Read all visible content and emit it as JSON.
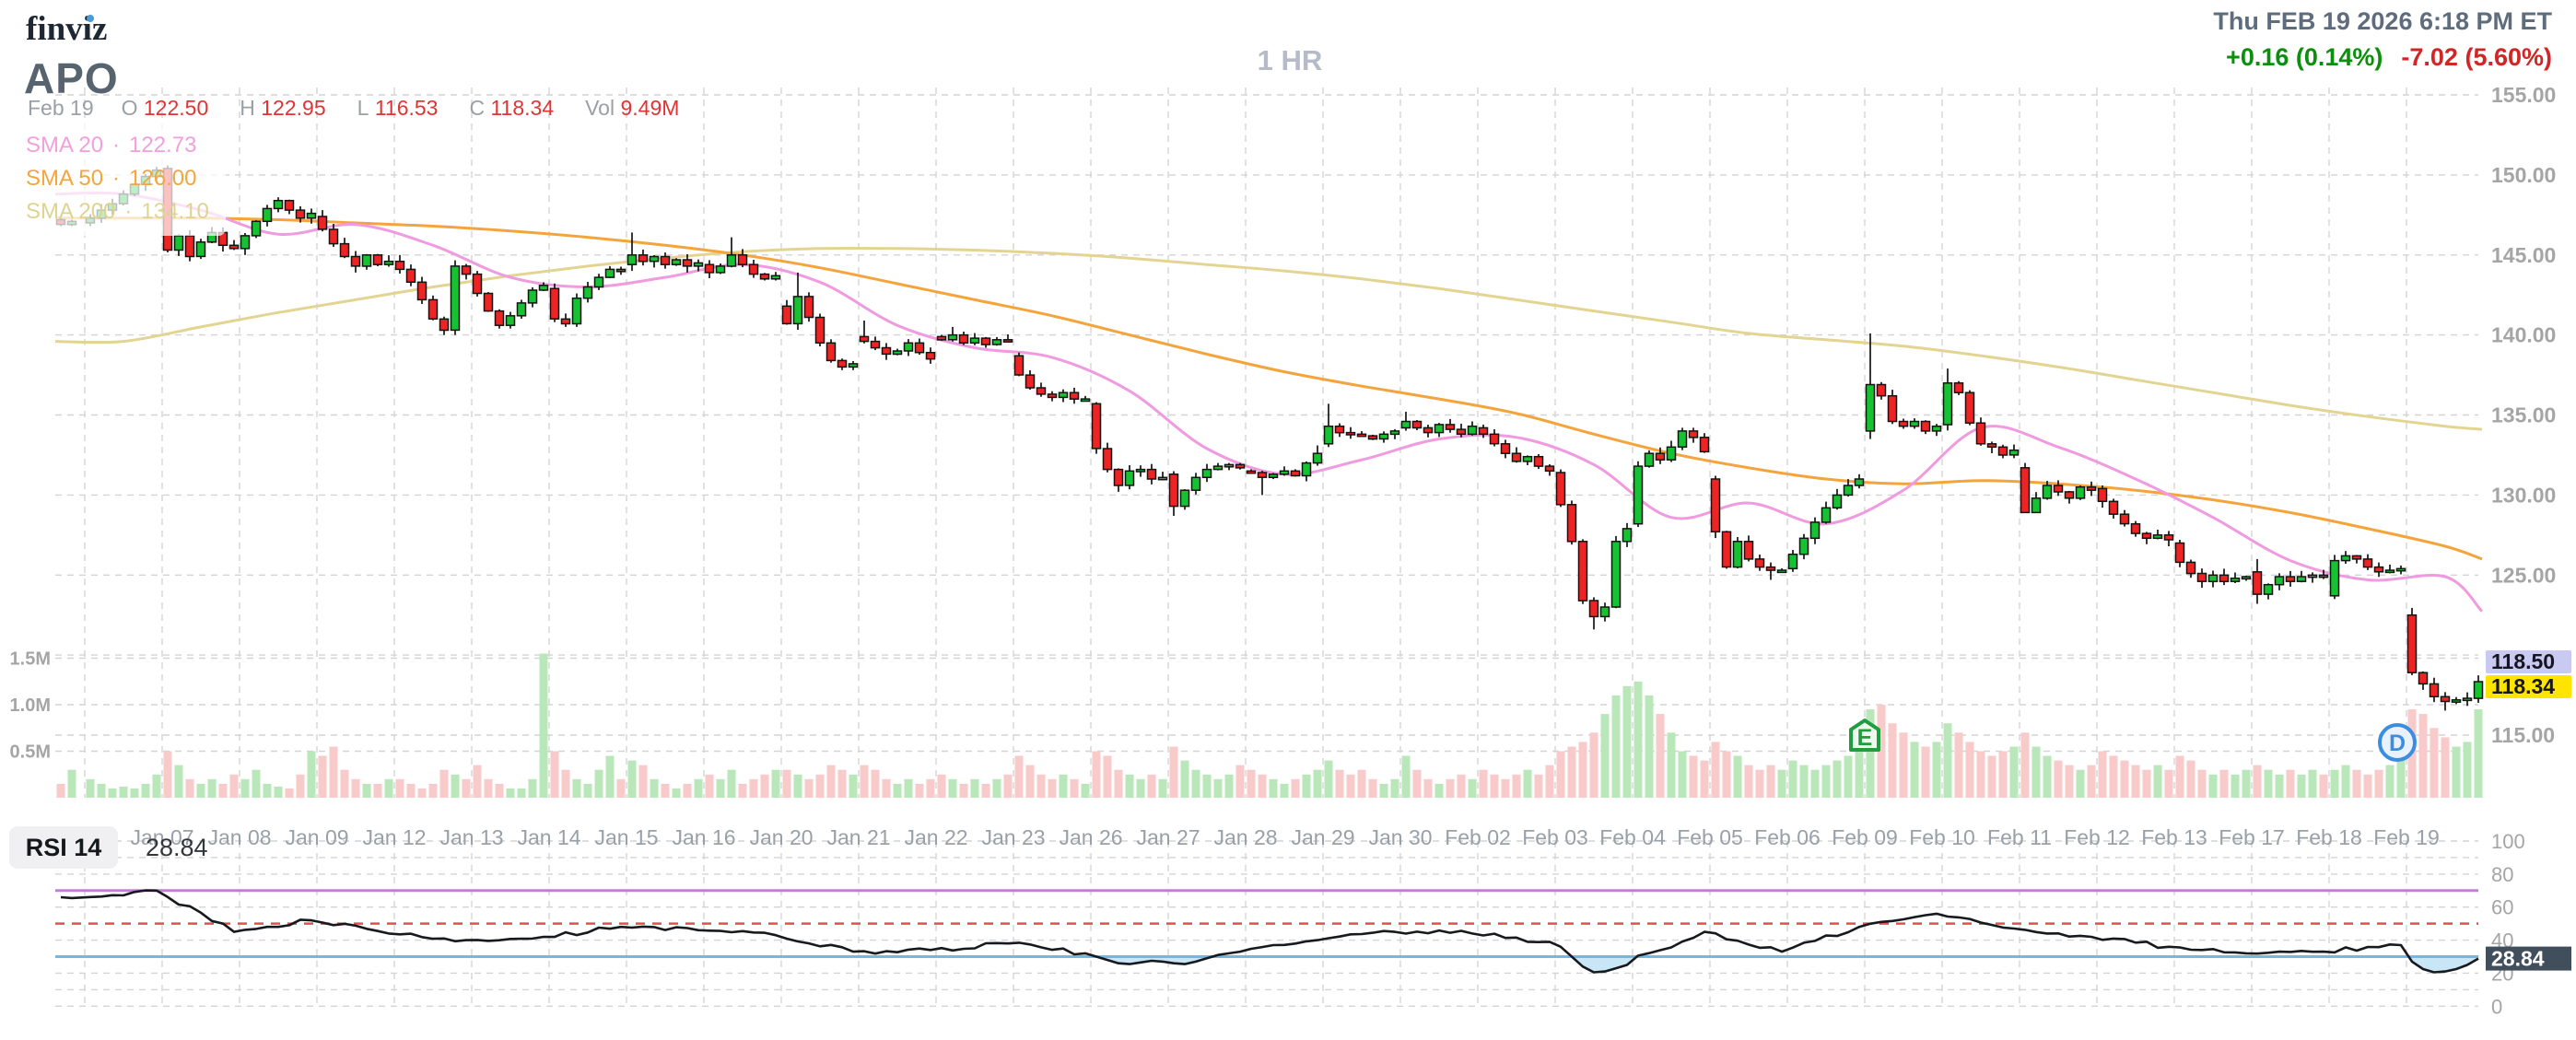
{
  "header": {
    "logo": "finviz",
    "ticker": "APO",
    "clock": "Thu FEB 19 2026 6:18 PM ET",
    "change_afterhours": "+0.16 (0.14%)",
    "change_day": "-7.02 (5.60%)",
    "timeframe": "1 HR"
  },
  "readout": {
    "date": "Feb 19",
    "items": [
      {
        "k": "O",
        "v": "122.50"
      },
      {
        "k": "H",
        "v": "122.95"
      },
      {
        "k": "L",
        "v": "116.53"
      },
      {
        "k": "C",
        "v": "118.34"
      },
      {
        "k": "Vol",
        "v": "9.49M"
      }
    ]
  },
  "legend": {
    "sep": "·",
    "rows": [
      {
        "label": "SMA 20",
        "value": "122.73",
        "color": "#f2a0dc"
      },
      {
        "label": "SMA 50",
        "value": "126.00",
        "color": "#f5a53d"
      },
      {
        "label": "SMA 200",
        "value": "134.10",
        "color": "#ded391"
      }
    ]
  },
  "rsi_panel": {
    "label": "RSI 14",
    "value": "28.84",
    "levels": {
      "overbought": 70,
      "middle": 50,
      "oversold": 30
    },
    "axis_ticks": [
      100,
      80,
      60,
      40,
      20,
      0
    ],
    "badge_bg": "#414e5b"
  },
  "price_badges": [
    {
      "text": "118.50",
      "bg": "#c9c9f2",
      "fg": "#15151f"
    },
    {
      "text": "118.34",
      "bg": "#ffe400",
      "fg": "#15151f"
    }
  ],
  "markers": [
    {
      "type": "earnings",
      "label": "E",
      "day": 23,
      "shape": "pentagon",
      "stroke": "#1e9e3e",
      "fill": "#edf9ed"
    },
    {
      "type": "dividend",
      "label": "D",
      "day": 30,
      "shape": "circle",
      "stroke": "#3b8de0",
      "fill": "#e9f2fc"
    }
  ],
  "colors": {
    "candle_up": "#16c232",
    "candle_down": "#ee2424",
    "candle_border": "#141414",
    "vol_up": "#b9e7b9",
    "vol_down": "#f8caca",
    "grid": "#d4d4d4",
    "axis_text": "#a5a5a5",
    "date_text": "#98a0a8",
    "sma20": "#f09ae0",
    "sma50": "#f5a43c",
    "sma200": "#e3d492",
    "rsi_line": "#16191d",
    "rsi_ob": "#c77be0",
    "rsi_mid": "#e05252",
    "rsi_os": "#6db9e8",
    "rsi_fill": "#c9e6f7"
  },
  "chart_data": {
    "type": "candlestick",
    "interval": "1 HR",
    "title": "APO hourly candlestick chart with volume and RSI(14)",
    "price_axis_ticks": [
      155,
      150,
      145,
      140,
      135,
      130,
      125,
      115
    ],
    "price_range": [
      113,
      156
    ],
    "volume_axis": [
      {
        "label": "1.5M",
        "value": 1.5
      },
      {
        "label": "1.0M",
        "value": 1.0
      },
      {
        "label": "0.5M",
        "value": 0.5
      }
    ],
    "last_close": 118.34,
    "extended_price": 118.5,
    "pre_session": {
      "path": [
        147.2,
        146.9,
        147.1
      ],
      "vols": [
        0.15,
        0.3
      ],
      "rsi_start": 66
    },
    "days": [
      {
        "d": "",
        "p": [
          147.0,
          147.3,
          147.8,
          148.2,
          148.8,
          149.4,
          149.9,
          150.3
        ],
        "h": 150.5,
        "l": 146.8,
        "v": [
          0.2,
          0.15,
          0.1,
          0.12,
          0.1,
          0.15,
          0.25
        ],
        "rsi": 70
      },
      {
        "d": "Jan 07",
        "p": [
          150.4,
          145.3,
          146.2,
          144.9,
          145.8,
          146.4,
          145.6,
          145.4
        ],
        "h": 150.6,
        "l": 144.6,
        "v": [
          0.5,
          0.35,
          0.2,
          0.15,
          0.2,
          0.15,
          0.25
        ],
        "rsi": 45
      },
      {
        "d": "Jan 08",
        "p": [
          145.4,
          146.2,
          147.1,
          147.9,
          148.4,
          147.8,
          147.3,
          147.6
        ],
        "h": 148.6,
        "l": 145.0,
        "v": [
          0.2,
          0.3,
          0.15,
          0.12,
          0.1,
          0.25,
          0.5
        ],
        "rsi": 52
      },
      {
        "d": "Jan 09",
        "p": [
          147.4,
          146.6,
          145.7,
          144.9,
          144.3,
          145.0,
          144.4,
          144.6
        ],
        "h": 147.8,
        "l": 143.9,
        "v": [
          0.45,
          0.55,
          0.3,
          0.2,
          0.15,
          0.15,
          0.2
        ],
        "rsi": 44
      },
      {
        "d": "Jan 12",
        "p": [
          144.6,
          144.1,
          143.3,
          142.2,
          141.0,
          140.3,
          144.3,
          143.8
        ],
        "h": 145.0,
        "l": 140.0,
        "v": [
          0.2,
          0.15,
          0.1,
          0.15,
          0.3,
          0.25,
          0.2
        ],
        "rsi": 40
      },
      {
        "d": "Jan 13",
        "p": [
          143.8,
          142.6,
          141.5,
          140.6,
          141.2,
          142.0,
          142.8,
          143.1
        ],
        "h": 144.0,
        "l": 140.4,
        "v": [
          0.35,
          0.2,
          0.15,
          0.1,
          0.1,
          0.2,
          1.55
        ],
        "rsi": 42
      },
      {
        "d": "Jan 14",
        "p": [
          142.9,
          141.0,
          140.7,
          142.3,
          143.0,
          143.6,
          144.1,
          144.0
        ],
        "h": 144.3,
        "l": 140.5,
        "v": [
          0.5,
          0.3,
          0.2,
          0.15,
          0.3,
          0.45,
          0.2
        ],
        "rsi": 48
      },
      {
        "d": "Jan 15",
        "p": [
          144.4,
          145.0,
          144.6,
          144.9,
          144.4,
          144.7,
          144.3,
          144.5
        ],
        "h": 146.4,
        "l": 143.9,
        "v": [
          0.4,
          0.35,
          0.2,
          0.15,
          0.1,
          0.15,
          0.2
        ],
        "rsi": 46
      },
      {
        "d": "Jan 16",
        "p": [
          144.4,
          143.9,
          144.3,
          145.0,
          144.4,
          143.8,
          143.5,
          143.7
        ],
        "h": 146.1,
        "l": 143.4,
        "v": [
          0.25,
          0.2,
          0.3,
          0.15,
          0.2,
          0.25,
          0.3
        ],
        "rsi": 43
      },
      {
        "d": "Jan 20",
        "p": [
          141.8,
          140.7,
          142.4,
          141.1,
          139.5,
          138.4,
          138.0,
          138.2
        ],
        "h": 143.9,
        "l": 137.8,
        "v": [
          0.3,
          0.25,
          0.2,
          0.25,
          0.35,
          0.3,
          0.25
        ],
        "rsi": 33
      },
      {
        "d": "Jan 21",
        "p": [
          139.9,
          139.6,
          139.2,
          138.8,
          139.0,
          139.5,
          138.9,
          138.5
        ],
        "h": 140.9,
        "l": 138.2,
        "v": [
          0.35,
          0.3,
          0.2,
          0.15,
          0.2,
          0.15,
          0.2
        ],
        "rsi": 34
      },
      {
        "d": "Jan 22",
        "p": [
          139.9,
          139.7,
          140.0,
          139.5,
          139.8,
          139.4,
          139.7,
          139.6
        ],
        "h": 140.5,
        "l": 139.2,
        "v": [
          0.25,
          0.2,
          0.15,
          0.2,
          0.15,
          0.2,
          0.25
        ],
        "rsi": 38
      },
      {
        "d": "Jan 23",
        "p": [
          138.7,
          137.5,
          136.7,
          136.3,
          136.1,
          136.4,
          136.0,
          136.0
        ],
        "h": 138.9,
        "l": 135.7,
        "v": [
          0.45,
          0.35,
          0.25,
          0.2,
          0.25,
          0.2,
          0.15
        ],
        "rsi": 32
      },
      {
        "d": "Jan 26",
        "p": [
          135.7,
          132.9,
          131.6,
          130.6,
          131.5,
          131.6,
          131.0,
          131.1
        ],
        "h": 135.8,
        "l": 130.2,
        "v": [
          0.5,
          0.45,
          0.3,
          0.25,
          0.2,
          0.25,
          0.2
        ],
        "rsi": 27
      },
      {
        "d": "Jan 27",
        "p": [
          131.3,
          129.3,
          130.3,
          131.1,
          131.6,
          131.8,
          131.9,
          131.7
        ],
        "h": 132.0,
        "l": 128.7,
        "v": [
          0.55,
          0.4,
          0.3,
          0.25,
          0.2,
          0.25,
          0.35
        ],
        "rsi": 33
      },
      {
        "d": "Jan 28",
        "p": [
          131.5,
          131.4,
          131.1,
          131.3,
          131.5,
          131.2,
          132.0,
          132.6
        ],
        "h": 133.1,
        "l": 130.0,
        "v": [
          0.3,
          0.25,
          0.2,
          0.15,
          0.2,
          0.25,
          0.3
        ],
        "rsi": 40
      },
      {
        "d": "Jan 29",
        "p": [
          133.2,
          134.3,
          133.9,
          133.8,
          133.7,
          133.5,
          133.8,
          134.0
        ],
        "h": 135.7,
        "l": 133.0,
        "v": [
          0.4,
          0.3,
          0.25,
          0.3,
          0.2,
          0.15,
          0.2
        ],
        "rsi": 45
      },
      {
        "d": "Jan 30",
        "p": [
          134.2,
          134.6,
          134.2,
          133.9,
          134.4,
          134.1,
          133.8,
          134.3
        ],
        "h": 135.2,
        "l": 133.6,
        "v": [
          0.45,
          0.3,
          0.2,
          0.15,
          0.2,
          0.25,
          0.2
        ],
        "rsi": 44
      },
      {
        "d": "Feb 02",
        "p": [
          134.2,
          133.8,
          133.2,
          132.6,
          132.1,
          132.4,
          131.8,
          131.5
        ],
        "h": 134.4,
        "l": 131.2,
        "v": [
          0.3,
          0.25,
          0.2,
          0.25,
          0.3,
          0.25,
          0.35
        ],
        "rsi": 39
      },
      {
        "d": "Feb 03",
        "p": [
          131.4,
          129.4,
          127.1,
          123.4,
          122.4,
          123.0,
          127.1,
          127.9
        ],
        "h": 131.6,
        "l": 121.6,
        "v": [
          0.5,
          0.55,
          0.6,
          0.7,
          0.9,
          1.1,
          1.2
        ],
        "rsi": 25
      },
      {
        "d": "Feb 04",
        "p": [
          128.2,
          131.8,
          132.6,
          132.2,
          133.0,
          134.0,
          133.6,
          132.7
        ],
        "h": 134.2,
        "l": 128.0,
        "v": [
          1.25,
          1.1,
          0.9,
          0.7,
          0.5,
          0.45,
          0.4
        ],
        "rsi": 45
      },
      {
        "d": "Feb 05",
        "p": [
          131.0,
          127.7,
          125.5,
          127.1,
          126.0,
          125.5,
          125.3,
          125.3
        ],
        "h": 131.2,
        "l": 124.7,
        "v": [
          0.6,
          0.5,
          0.45,
          0.35,
          0.3,
          0.35,
          0.3
        ],
        "rsi": 33
      },
      {
        "d": "Feb 06",
        "p": [
          125.4,
          126.3,
          127.3,
          128.3,
          129.2,
          130.0,
          130.6,
          131.0
        ],
        "h": 131.3,
        "l": 125.2,
        "v": [
          0.4,
          0.35,
          0.3,
          0.35,
          0.4,
          0.45,
          0.5
        ],
        "rsi": 48
      },
      {
        "d": "Feb 09",
        "p": [
          134.0,
          136.9,
          136.2,
          134.6,
          134.3,
          134.6,
          134.0,
          134.3
        ],
        "h": 140.1,
        "l": 133.5,
        "v": [
          0.95,
          1.0,
          0.8,
          0.7,
          0.6,
          0.55,
          0.6
        ],
        "rsi": 56
      },
      {
        "d": "Feb 10",
        "p": [
          134.4,
          137.0,
          136.4,
          134.5,
          133.2,
          133.0,
          132.5,
          132.8
        ],
        "h": 137.9,
        "l": 132.3,
        "v": [
          0.8,
          0.7,
          0.6,
          0.5,
          0.45,
          0.5,
          0.55
        ],
        "rsi": 47
      },
      {
        "d": "Feb 11",
        "p": [
          131.7,
          128.9,
          129.8,
          130.6,
          130.2,
          129.8,
          130.5,
          130.3
        ],
        "h": 132.0,
        "l": 128.9,
        "v": [
          0.7,
          0.55,
          0.45,
          0.4,
          0.35,
          0.3,
          0.35
        ],
        "rsi": 42
      },
      {
        "d": "Feb 12",
        "p": [
          130.4,
          129.6,
          128.8,
          128.2,
          127.6,
          127.3,
          127.5,
          127.2
        ],
        "h": 130.6,
        "l": 126.8,
        "v": [
          0.5,
          0.45,
          0.4,
          0.35,
          0.3,
          0.35,
          0.3
        ],
        "rsi": 36
      },
      {
        "d": "Feb 13",
        "p": [
          127.0,
          125.8,
          125.1,
          124.6,
          125.0,
          124.6,
          124.8,
          124.9
        ],
        "h": 127.2,
        "l": 124.2,
        "v": [
          0.45,
          0.4,
          0.3,
          0.25,
          0.3,
          0.25,
          0.3
        ],
        "rsi": 32
      },
      {
        "d": "Feb 17",
        "p": [
          125.2,
          123.8,
          124.4,
          124.9,
          124.6,
          124.9,
          125.0,
          124.9
        ],
        "h": 126.0,
        "l": 123.2,
        "v": [
          0.35,
          0.3,
          0.25,
          0.3,
          0.25,
          0.3,
          0.25
        ],
        "rsi": 33
      },
      {
        "d": "Feb 18",
        "p": [
          123.7,
          125.9,
          126.2,
          126.0,
          125.5,
          125.2,
          125.3,
          125.4
        ],
        "h": 126.5,
        "l": 123.5,
        "v": [
          0.3,
          0.35,
          0.3,
          0.25,
          0.3,
          0.35,
          0.4
        ],
        "rsi": 37
      },
      {
        "d": "Feb 19",
        "p": [
          122.5,
          118.9,
          118.2,
          117.4,
          117.1,
          117.2,
          117.3,
          118.34
        ],
        "h": 122.95,
        "l": 116.53,
        "v": [
          0.95,
          0.9,
          0.75,
          0.65,
          0.55,
          0.6,
          0.95
        ],
        "rsi": 28.84
      }
    ],
    "rsi_overrides": {
      "13": [
        30,
        28,
        26,
        25.5,
        26.5,
        27.5,
        27
      ],
      "14": [
        26,
        25.5,
        27,
        29,
        31,
        32,
        33
      ],
      "19": [
        36,
        30,
        24,
        20.5,
        21,
        23,
        25
      ],
      "30": [
        27,
        22.5,
        20.5,
        21,
        22.5,
        25,
        28.84
      ]
    },
    "sma20": [
      148.8,
      147.8,
      146.3,
      146.9,
      145.6,
      143.6,
      143.0,
      143.6,
      144.4,
      143.3,
      140.6,
      139.2,
      138.6,
      136.5,
      132.9,
      131.3,
      132.2,
      133.5,
      133.6,
      131.9,
      128.6,
      129.5,
      128.2,
      130.3,
      134.2,
      133.0,
      131.0,
      128.6,
      125.9,
      124.7,
      124.9
    ],
    "sma20_edge": 122.73,
    "sma50": [
      147.3,
      147.3,
      147.2,
      147.0,
      146.8,
      146.5,
      146.1,
      145.6,
      145.0,
      144.2,
      143.2,
      142.2,
      141.2,
      140.0,
      138.8,
      137.7,
      136.8,
      136.0,
      135.1,
      133.8,
      132.6,
      131.7,
      131.0,
      130.7,
      130.9,
      130.7,
      130.3,
      129.7,
      128.9,
      127.9,
      126.8
    ],
    "sma50_edge": 126.0,
    "sma200": [
      139.6,
      140.5,
      141.4,
      142.2,
      143.0,
      143.7,
      144.3,
      144.8,
      145.2,
      145.4,
      145.4,
      145.3,
      145.1,
      144.8,
      144.4,
      144.0,
      143.5,
      142.9,
      142.2,
      141.5,
      140.8,
      140.1,
      139.7,
      139.3,
      138.7,
      138.0,
      137.2,
      136.4,
      135.6,
      134.9,
      134.3
    ],
    "sma200_edge": 134.1
  }
}
